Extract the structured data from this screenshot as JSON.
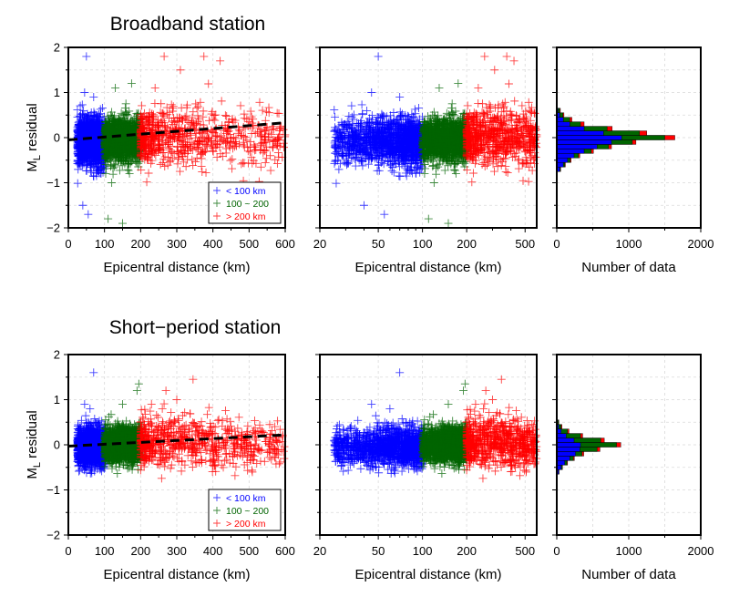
{
  "titles": {
    "top": "Broadband station",
    "bottom": "Short−period station"
  },
  "axis_labels": {
    "y": "M",
    "y_sub": "L",
    "y_rest": " residual",
    "x_distance": "Epicentral distance (km)",
    "x_count": "Number of data"
  },
  "legend": [
    {
      "label": "< 100 km",
      "color": "#0000ff"
    },
    {
      "label": "100 ~ 200",
      "color": "#006400"
    },
    {
      "label": "> 200 km",
      "color": "#ff0000"
    }
  ],
  "colors": {
    "near": "#0000ff",
    "mid": "#006400",
    "far": "#ff0000",
    "trend": "#000000",
    "grid": "#d9d9d9"
  },
  "ticks": {
    "y": [
      "−2",
      "−1",
      "0",
      "1",
      "2"
    ],
    "x_linear": [
      "0",
      "100",
      "200",
      "300",
      "400",
      "500",
      "600"
    ],
    "x_log": [
      "20",
      "50",
      "100",
      "200",
      "500"
    ],
    "x_count": [
      "0",
      "1000",
      "2000"
    ]
  },
  "chart_data": [
    {
      "type": "scatter",
      "title": "Broadband station",
      "xlabel": "Epicentral distance (km)",
      "ylabel": "ML residual",
      "xlim": [
        0,
        600
      ],
      "ylim": [
        -2,
        2
      ],
      "x_scale": "linear",
      "series": [
        {
          "name": "< 100 km",
          "x_range": [
            25,
            100
          ],
          "y_center": -0.1,
          "y_spread": 0.35,
          "outliers": [
            [
              50,
              1.8
            ],
            [
              55,
              -1.7
            ],
            [
              40,
              -1.5
            ],
            [
              70,
              0.9
            ],
            [
              45,
              1.0
            ]
          ]
        },
        {
          "name": "100 ~ 200",
          "x_range": [
            100,
            200
          ],
          "y_center": -0.05,
          "y_spread": 0.3,
          "outliers": [
            [
              110,
              -1.8
            ],
            [
              120,
              -1.0
            ],
            [
              150,
              -1.9
            ],
            [
              130,
              1.1
            ],
            [
              175,
              1.2
            ]
          ]
        },
        {
          "name": "> 200 km",
          "x_range": [
            200,
            600
          ],
          "y_center": 0.0,
          "y_spread": 0.35,
          "outliers": [
            [
              265,
              1.8
            ],
            [
              375,
              1.8
            ],
            [
              420,
              1.7
            ],
            [
              310,
              1.5
            ],
            [
              240,
              1.1
            ]
          ]
        }
      ],
      "trend_line": {
        "x": [
          0,
          600
        ],
        "y": [
          -0.05,
          0.33
        ],
        "style": "dashed"
      },
      "grid": true,
      "legend_position": "bottom-right"
    },
    {
      "type": "scatter",
      "title": "",
      "xlabel": "Epicentral distance (km)",
      "ylabel": "",
      "xlim": [
        20,
        600
      ],
      "ylim": [
        -2,
        2
      ],
      "x_scale": "log",
      "series": [
        {
          "name": "< 100 km",
          "x_range": [
            25,
            100
          ]
        },
        {
          "name": "100 ~ 200",
          "x_range": [
            100,
            200
          ]
        },
        {
          "name": "> 200 km",
          "x_range": [
            200,
            600
          ]
        }
      ],
      "grid": true
    },
    {
      "type": "bar",
      "orientation": "horizontal",
      "title": "",
      "xlabel": "Number of data",
      "xlim": [
        0,
        2000
      ],
      "ylim": [
        -2,
        2
      ],
      "bins": [
        {
          "y": -0.7,
          "near": 40,
          "mid": 50,
          "far": 55
        },
        {
          "y": -0.6,
          "near": 90,
          "mid": 110,
          "far": 120
        },
        {
          "y": -0.5,
          "near": 150,
          "mid": 185,
          "far": 200
        },
        {
          "y": -0.4,
          "near": 240,
          "mid": 300,
          "far": 320
        },
        {
          "y": -0.3,
          "near": 380,
          "mid": 480,
          "far": 510
        },
        {
          "y": -0.2,
          "near": 560,
          "mid": 720,
          "far": 760
        },
        {
          "y": -0.1,
          "near": 760,
          "mid": 1050,
          "far": 1100
        },
        {
          "y": 0.0,
          "near": 900,
          "mid": 1500,
          "far": 1640
        },
        {
          "y": 0.1,
          "near": 650,
          "mid": 1150,
          "far": 1250
        },
        {
          "y": 0.2,
          "near": 380,
          "mid": 700,
          "far": 770
        },
        {
          "y": 0.3,
          "near": 180,
          "mid": 330,
          "far": 380
        },
        {
          "y": 0.4,
          "near": 90,
          "mid": 180,
          "far": 210
        },
        {
          "y": 0.5,
          "near": 40,
          "mid": 85,
          "far": 100
        },
        {
          "y": 0.6,
          "near": 18,
          "mid": 40,
          "far": 50
        }
      ],
      "grid": true
    },
    {
      "type": "scatter",
      "title": "Short−period station",
      "xlabel": "Epicentral distance (km)",
      "ylabel": "ML residual",
      "xlim": [
        0,
        600
      ],
      "ylim": [
        -2,
        2
      ],
      "x_scale": "linear",
      "series": [
        {
          "name": "< 100 km",
          "x_range": [
            25,
            100
          ],
          "y_center": -0.05,
          "y_spread": 0.28,
          "outliers": [
            [
              70,
              1.6
            ],
            [
              45,
              0.9
            ],
            [
              60,
              0.8
            ]
          ]
        },
        {
          "name": "100 ~ 200",
          "x_range": [
            100,
            200
          ],
          "y_center": 0.0,
          "y_spread": 0.25,
          "outliers": [
            [
              195,
              1.35
            ],
            [
              190,
              1.2
            ],
            [
              150,
              0.9
            ]
          ]
        },
        {
          "name": "> 200 km",
          "x_range": [
            200,
            600
          ],
          "y_center": 0.05,
          "y_spread": 0.3,
          "outliers": [
            [
              270,
              1.2
            ],
            [
              345,
              1.45
            ],
            [
              300,
              1.0
            ],
            [
              230,
              0.9
            ],
            [
              260,
              0.8
            ]
          ]
        }
      ],
      "trend_line": {
        "x": [
          0,
          600
        ],
        "y": [
          -0.03,
          0.22
        ],
        "style": "dashed"
      },
      "grid": true,
      "legend_position": "bottom-right"
    },
    {
      "type": "scatter",
      "title": "",
      "xlabel": "Epicentral distance (km)",
      "ylabel": "",
      "xlim": [
        20,
        600
      ],
      "ylim": [
        -2,
        2
      ],
      "x_scale": "log",
      "series": [
        {
          "name": "< 100 km",
          "x_range": [
            25,
            100
          ]
        },
        {
          "name": "100 ~ 200",
          "x_range": [
            100,
            200
          ]
        },
        {
          "name": "> 200 km",
          "x_range": [
            200,
            600
          ]
        }
      ],
      "grid": true
    },
    {
      "type": "bar",
      "orientation": "horizontal",
      "title": "",
      "xlabel": "Number of data",
      "xlim": [
        0,
        2000
      ],
      "ylim": [
        -2,
        2
      ],
      "bins": [
        {
          "y": -0.6,
          "near": 25,
          "mid": 30,
          "far": 32
        },
        {
          "y": -0.5,
          "near": 60,
          "mid": 75,
          "far": 80
        },
        {
          "y": -0.4,
          "near": 110,
          "mid": 140,
          "far": 150
        },
        {
          "y": -0.3,
          "near": 180,
          "mid": 230,
          "far": 245
        },
        {
          "y": -0.2,
          "near": 260,
          "mid": 350,
          "far": 375
        },
        {
          "y": -0.1,
          "near": 320,
          "mid": 560,
          "far": 600
        },
        {
          "y": 0.0,
          "near": 330,
          "mid": 830,
          "far": 890
        },
        {
          "y": 0.1,
          "near": 240,
          "mid": 610,
          "far": 660
        },
        {
          "y": 0.2,
          "near": 130,
          "mid": 330,
          "far": 360
        },
        {
          "y": 0.3,
          "near": 60,
          "mid": 150,
          "far": 170
        },
        {
          "y": 0.4,
          "near": 25,
          "mid": 60,
          "far": 72
        },
        {
          "y": 0.5,
          "near": 10,
          "mid": 22,
          "far": 28
        }
      ],
      "grid": true
    }
  ]
}
